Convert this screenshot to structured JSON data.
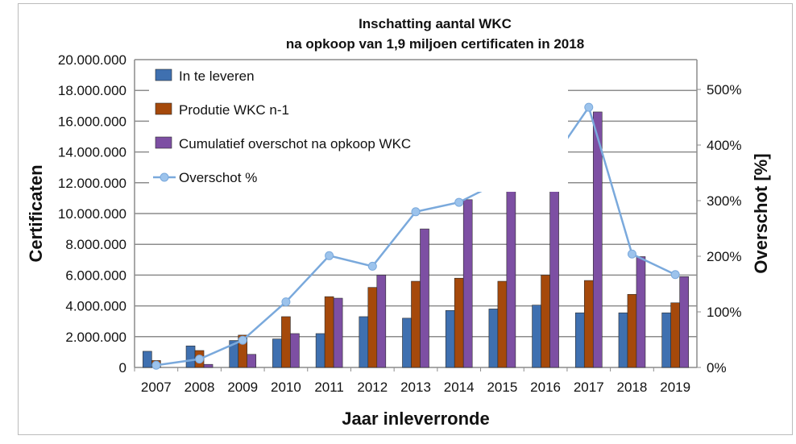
{
  "chart_data": {
    "type": "bar",
    "title": [
      "Inschatting aantal WKC",
      "na opkoop van 1,9 miljoen certificaten in 2018"
    ],
    "xlabel": "Jaar inleverronde",
    "ylabel": "Certificaten",
    "y2label": "Overschot [%]",
    "ylim": [
      0,
      20000000
    ],
    "y2lim": [
      0,
      550
    ],
    "yticks": [
      "0",
      "2.000.000",
      "4.000.000",
      "6.000.000",
      "8.000.000",
      "10.000.000",
      "12.000.000",
      "14.000.000",
      "16.000.000",
      "18.000.000",
      "20.000.000"
    ],
    "y2ticks": [
      "0%",
      "100%",
      "200%",
      "300%",
      "400%",
      "500%"
    ],
    "categories": [
      "2007",
      "2008",
      "2009",
      "2010",
      "2011",
      "2012",
      "2013",
      "2014",
      "2015",
      "2016",
      "2017",
      "2018",
      "2019"
    ],
    "series": [
      {
        "name": "In te leveren",
        "type": "bar",
        "color": "#3f70b0",
        "values": [
          1050000,
          1400000,
          1750000,
          1850000,
          2200000,
          3300000,
          3200000,
          3700000,
          3800000,
          4050000,
          3550000,
          3550000,
          3550000
        ]
      },
      {
        "name": "Produtie WKC n-1",
        "type": "bar",
        "color": "#a5490b",
        "values": [
          450000,
          1100000,
          2100000,
          3300000,
          4600000,
          5200000,
          5600000,
          5800000,
          5600000,
          6000000,
          5650000,
          4750000,
          4200000
        ]
      },
      {
        "name": "Cumulatief overschot na opkoop WKC",
        "type": "bar",
        "color": "#7d4fa3",
        "values": [
          0,
          200000,
          850000,
          2200000,
          4500000,
          6000000,
          9000000,
          10900000,
          12900000,
          14400000,
          16600000,
          7200000,
          5900000
        ]
      },
      {
        "name": "Overschot %",
        "type": "line",
        "axis": "right",
        "color": "#7aa9dc",
        "values": [
          4,
          15,
          49,
          118,
          201,
          182,
          280,
          297,
          336,
          355,
          468,
          204,
          167
        ]
      }
    ],
    "legend": "top-left",
    "grid": true
  }
}
